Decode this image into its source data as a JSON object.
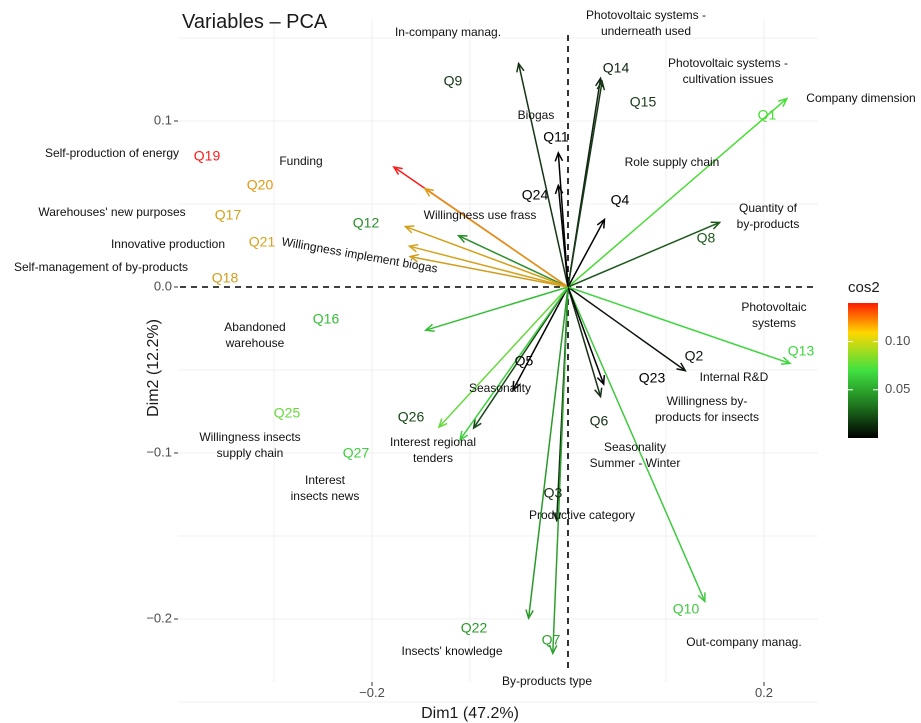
{
  "chart_data": {
    "type": "scatter",
    "title": "Variables – PCA",
    "xlabel": "Dim1 (47.2%)",
    "ylabel": "Dim2 (12.2%)",
    "x_ticks": [
      -0.2,
      0.2
    ],
    "x_tick_labels": [
      "−0.2",
      "0.2"
    ],
    "y_ticks": [
      -0.2,
      -0.1,
      0.0,
      0.1
    ],
    "y_tick_labels": [
      "−0.2",
      "−0.1",
      "0.0",
      "0.1"
    ],
    "xlim": [
      -0.39,
      0.27
    ],
    "ylim": [
      -0.255,
      0.17
    ],
    "grid": true,
    "legend": {
      "title": "cos2",
      "position": "right",
      "min": 0.0,
      "max": 0.14,
      "ticks": [
        0.05,
        0.1
      ],
      "tick_labels": [
        "0.05",
        "0.10"
      ],
      "colors": [
        "#000000",
        "#2a8a2a",
        "#40e040",
        "#ffd700",
        "#ff0000"
      ]
    },
    "variables": [
      {
        "name": "Q1",
        "x": 0.2233,
        "y": 0.1135,
        "color": "#47dd33"
      },
      {
        "name": "Q2",
        "x": 0.1197,
        "y": -0.0504,
        "color": "#0d150d"
      },
      {
        "name": "Q3",
        "x": -0.0115,
        "y": -0.1407,
        "color": "#143014"
      },
      {
        "name": "Q4",
        "x": 0.0372,
        "y": 0.0407,
        "color": "#000000"
      },
      {
        "name": "Q5",
        "x": -0.0561,
        "y": -0.062,
        "color": "#000000"
      },
      {
        "name": "Q6",
        "x": 0.0332,
        "y": -0.066,
        "color": "#173017"
      },
      {
        "name": "Q7",
        "x": -0.0155,
        "y": -0.2207,
        "color": "#2fa02f"
      },
      {
        "name": "Q8",
        "x": 0.1547,
        "y": 0.0389,
        "color": "#1b5a1b"
      },
      {
        "name": "Q9",
        "x": -0.0504,
        "y": 0.1346,
        "color": "#153515"
      },
      {
        "name": "Q10",
        "x": 0.1396,
        "y": -0.1894,
        "color": "#3fc93f"
      },
      {
        "name": "Q11",
        "x": -0.0099,
        "y": 0.0808,
        "color": "#000000"
      },
      {
        "name": "Q12",
        "x": -0.1117,
        "y": 0.0309,
        "color": "#2b8f2b"
      },
      {
        "name": "Q13",
        "x": 0.2265,
        "y": -0.046,
        "color": "#3ed63e"
      },
      {
        "name": "Q14",
        "x": 0.0332,
        "y": 0.1257,
        "color": "#0f240f"
      },
      {
        "name": "Q15",
        "x": 0.0348,
        "y": 0.1238,
        "color": "#193a19"
      },
      {
        "name": "Q16",
        "x": -0.1452,
        "y": -0.026,
        "color": "#36be36"
      },
      {
        "name": "Q17",
        "x": -0.1659,
        "y": 0.0364,
        "color": "#d4a019"
      },
      {
        "name": "Q18",
        "x": -0.1611,
        "y": 0.0183,
        "color": "#d09c1b"
      },
      {
        "name": "Q19",
        "x": -0.1777,
        "y": 0.0723,
        "color": "#ff1a1a"
      },
      {
        "name": "Q20",
        "x": -0.146,
        "y": 0.0592,
        "color": "#de9a12"
      },
      {
        "name": "Q21",
        "x": -0.1619,
        "y": 0.0246,
        "color": "#d5a31e"
      },
      {
        "name": "Q22",
        "x": -0.0402,
        "y": -0.1995,
        "color": "#2a9a2a"
      },
      {
        "name": "Q23",
        "x": 0.0364,
        "y": -0.0585,
        "color": "#000000"
      },
      {
        "name": "Q24",
        "x": -0.0099,
        "y": 0.0612,
        "color": "#000000"
      },
      {
        "name": "Q25",
        "x": -0.1317,
        "y": -0.0844,
        "color": "#66d93d"
      },
      {
        "name": "Q26",
        "x": -0.0963,
        "y": -0.085,
        "color": "#184818"
      },
      {
        "name": "Q27",
        "x": -0.1101,
        "y": -0.092,
        "color": "#3dcf3d"
      }
    ],
    "annotations": [
      "In-company manag.",
      "Photovoltaic systems -\nunderneath  used",
      "Photovoltaic systems -\ncultivation issues",
      "Company dimension",
      "Biogas",
      "Role supply chain",
      "Self-production of energy",
      "Funding",
      "Warehouses' new purposes",
      "Willingness use frass",
      "Quantity of\nby-products",
      "Innovative production",
      "Willingness implement  biogas",
      "Self-management of by-products",
      "Photovoltaic\nsystems",
      "Abandoned\nwarehouse",
      "Seasonality",
      "Internal R&D",
      "Willingness by-\nproducts for insects",
      "Willingness insects\nsupply chain",
      "Interest regional\ntenders",
      "Seasonality\nSummer - Winter",
      "Interest\ninsects news",
      "Productive category",
      "Insects' knowledge",
      "Out-company manag.",
      "By-products type"
    ]
  }
}
